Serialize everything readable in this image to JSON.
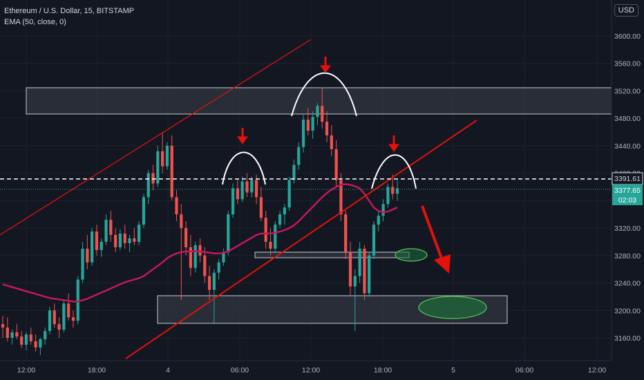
{
  "legend": {
    "symbol": "Ethereum / U.S. Dollar, 15, BITSTAMP",
    "indicator": "EMA (50, close, 0)"
  },
  "currency": "USD",
  "colors": {
    "background": "#131722",
    "up": "#26a69a",
    "down": "#ef5350",
    "ema": "#c2185b",
    "trend": "#e3120b",
    "arrow": "#e3120b",
    "zone_fill": "#3b3f4a",
    "target_fill": "#1e6b3a",
    "target_stroke": "#4caf50"
  },
  "chart_data": {
    "type": "candlestick",
    "ylim": [
      3130,
      3640
    ],
    "y_ticks": [
      "3600.00",
      "3560.00",
      "3520.00",
      "3480.00",
      "3440.00",
      "3400.00",
      "3360.00",
      "3320.00",
      "3280.00",
      "3240.00",
      "3200.00",
      "3160.00"
    ],
    "x_ticks": [
      "12:00",
      "18:00",
      "4",
      "06:00",
      "12:00",
      "18:00",
      "5",
      "06:00",
      "12:00"
    ],
    "dashed_level": "3391.61",
    "last_price": "3377.65",
    "countdown": "02:03",
    "candles": [
      [
        3180,
        3192,
        3160,
        3175
      ],
      [
        3175,
        3190,
        3155,
        3160
      ],
      [
        3160,
        3172,
        3150,
        3168
      ],
      [
        3168,
        3180,
        3158,
        3162
      ],
      [
        3162,
        3170,
        3145,
        3150
      ],
      [
        3150,
        3168,
        3142,
        3165
      ],
      [
        3165,
        3175,
        3150,
        3155
      ],
      [
        3155,
        3165,
        3140,
        3146
      ],
      [
        3146,
        3160,
        3135,
        3158
      ],
      [
        3158,
        3175,
        3150,
        3170
      ],
      [
        3170,
        3205,
        3165,
        3200
      ],
      [
        3200,
        3210,
        3175,
        3180
      ],
      [
        3180,
        3190,
        3160,
        3172
      ],
      [
        3172,
        3215,
        3168,
        3210
      ],
      [
        3210,
        3225,
        3185,
        3190
      ],
      [
        3190,
        3200,
        3175,
        3185
      ],
      [
        3185,
        3250,
        3180,
        3245
      ],
      [
        3245,
        3300,
        3240,
        3290
      ],
      [
        3290,
        3310,
        3260,
        3270
      ],
      [
        3270,
        3320,
        3265,
        3315
      ],
      [
        3315,
        3325,
        3280,
        3288
      ],
      [
        3288,
        3305,
        3278,
        3300
      ],
      [
        3300,
        3340,
        3295,
        3332
      ],
      [
        3332,
        3345,
        3300,
        3310
      ],
      [
        3310,
        3320,
        3285,
        3292
      ],
      [
        3292,
        3318,
        3288,
        3312
      ],
      [
        3312,
        3325,
        3290,
        3298
      ],
      [
        3298,
        3310,
        3285,
        3305
      ],
      [
        3305,
        3320,
        3295,
        3300
      ],
      [
        3300,
        3330,
        3295,
        3325
      ],
      [
        3325,
        3370,
        3320,
        3365
      ],
      [
        3365,
        3405,
        3355,
        3400
      ],
      [
        3400,
        3412,
        3375,
        3385
      ],
      [
        3385,
        3440,
        3380,
        3432
      ],
      [
        3432,
        3460,
        3400,
        3410
      ],
      [
        3410,
        3445,
        3405,
        3440
      ],
      [
        3440,
        3455,
        3360,
        3365
      ],
      [
        3365,
        3375,
        3330,
        3340
      ],
      [
        3340,
        3355,
        3215,
        3320
      ],
      [
        3320,
        3330,
        3280,
        3292
      ],
      [
        3292,
        3310,
        3250,
        3262
      ],
      [
        3262,
        3300,
        3255,
        3295
      ],
      [
        3295,
        3305,
        3270,
        3280
      ],
      [
        3280,
        3292,
        3240,
        3250
      ],
      [
        3250,
        3265,
        3215,
        3230
      ],
      [
        3230,
        3260,
        3180,
        3255
      ],
      [
        3255,
        3275,
        3245,
        3270
      ],
      [
        3270,
        3290,
        3265,
        3285
      ],
      [
        3285,
        3345,
        3280,
        3340
      ],
      [
        3340,
        3385,
        3335,
        3378
      ],
      [
        3378,
        3392,
        3355,
        3362
      ],
      [
        3362,
        3395,
        3358,
        3388
      ],
      [
        3388,
        3400,
        3365,
        3372
      ],
      [
        3372,
        3395,
        3365,
        3390
      ],
      [
        3390,
        3398,
        3355,
        3365
      ],
      [
        3365,
        3380,
        3330,
        3335
      ],
      [
        3335,
        3345,
        3290,
        3300
      ],
      [
        3300,
        3320,
        3280,
        3290
      ],
      [
        3290,
        3330,
        3285,
        3325
      ],
      [
        3325,
        3345,
        3320,
        3340
      ],
      [
        3340,
        3355,
        3325,
        3350
      ],
      [
        3350,
        3395,
        3345,
        3390
      ],
      [
        3390,
        3420,
        3385,
        3412
      ],
      [
        3412,
        3445,
        3405,
        3438
      ],
      [
        3438,
        3485,
        3430,
        3478
      ],
      [
        3478,
        3495,
        3455,
        3462
      ],
      [
        3462,
        3490,
        3450,
        3482
      ],
      [
        3482,
        3502,
        3470,
        3498
      ],
      [
        3498,
        3525,
        3465,
        3475
      ],
      [
        3475,
        3490,
        3445,
        3455
      ],
      [
        3455,
        3470,
        3425,
        3435
      ],
      [
        3435,
        3448,
        3380,
        3390
      ],
      [
        3390,
        3400,
        3330,
        3340
      ],
      [
        3340,
        3345,
        3275,
        3285
      ],
      [
        3285,
        3300,
        3220,
        3235
      ],
      [
        3235,
        3260,
        3170,
        3250
      ],
      [
        3250,
        3300,
        3240,
        3290
      ],
      [
        3290,
        3295,
        3215,
        3225
      ],
      [
        3225,
        3285,
        3220,
        3280
      ],
      [
        3280,
        3330,
        3275,
        3325
      ],
      [
        3325,
        3345,
        3315,
        3338
      ],
      [
        3338,
        3362,
        3330,
        3355
      ],
      [
        3355,
        3385,
        3350,
        3380
      ],
      [
        3380,
        3398,
        3362,
        3370
      ],
      [
        3370,
        3390,
        3360,
        3378
      ]
    ],
    "ema": [
      3238,
      3236,
      3234,
      3232,
      3230,
      3228,
      3226,
      3224,
      3222,
      3220,
      3218,
      3217,
      3216,
      3215,
      3214,
      3213,
      3213,
      3215,
      3217,
      3220,
      3223,
      3226,
      3229,
      3232,
      3235,
      3238,
      3241,
      3243,
      3245,
      3247,
      3250,
      3255,
      3260,
      3265,
      3270,
      3276,
      3280,
      3283,
      3285,
      3286,
      3286,
      3286,
      3286,
      3285,
      3284,
      3283,
      3283,
      3284,
      3286,
      3290,
      3294,
      3298,
      3302,
      3306,
      3310,
      3312,
      3312,
      3312,
      3313,
      3315,
      3317,
      3320,
      3324,
      3330,
      3337,
      3344,
      3351,
      3358,
      3365,
      3371,
      3376,
      3380,
      3383,
      3384,
      3383,
      3381,
      3378,
      3370,
      3360,
      3350,
      3345,
      3343,
      3344,
      3347,
      3350
    ]
  }
}
